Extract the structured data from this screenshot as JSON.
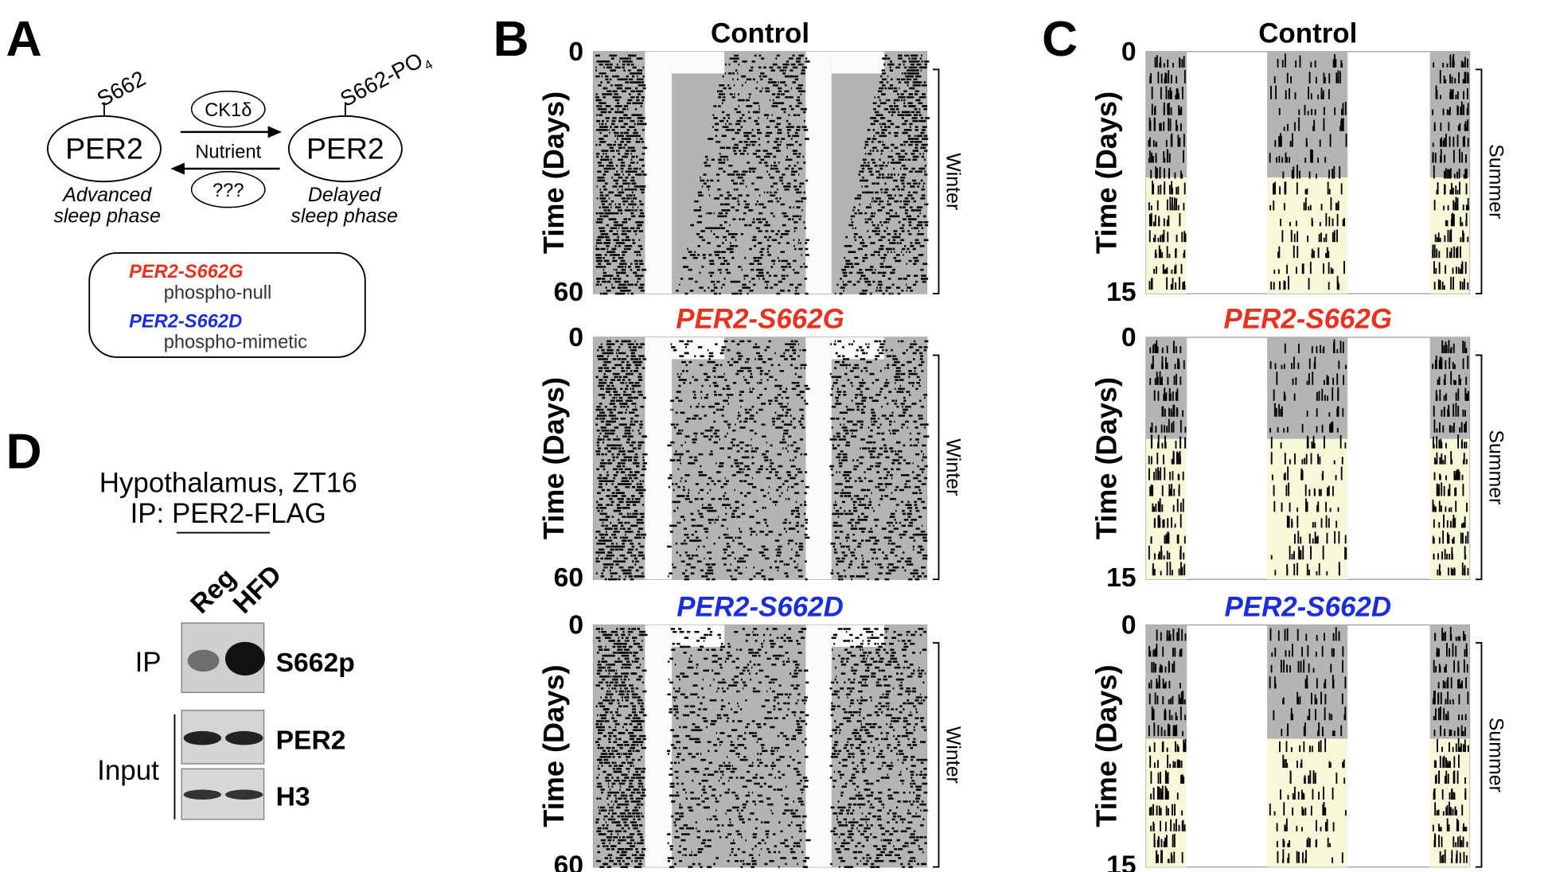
{
  "panel_a": {
    "label": "A",
    "site_left": "S662",
    "site_right": "S662-PO",
    "site_right_sub": "4",
    "protein_left": "PER2",
    "protein_right": "PER2",
    "kinase": "CK1δ",
    "nutrient": "Nutrient",
    "unknown": "???",
    "phenotype_left": [
      "Advanced",
      "sleep phase"
    ],
    "phenotype_right": [
      "Delayed",
      "sleep phase"
    ],
    "legend": [
      {
        "name": "PER2-S662G",
        "desc": "phospho-null",
        "color": "#e8321e"
      },
      {
        "name": "PER2-S662D",
        "desc": "phospho-mimetic",
        "color": "#1a2ee0"
      }
    ]
  },
  "panel_b": {
    "label": "B",
    "y_label": "Time (Days)",
    "season": "Winter",
    "y_start": "0",
    "y_end": "60",
    "actograms": [
      {
        "title": "Control",
        "color": "#000000"
      },
      {
        "title": "PER2-S662G",
        "color": "#e8321e"
      },
      {
        "title": "PER2-S662D",
        "color": "#1a2ee0"
      }
    ]
  },
  "panel_c": {
    "label": "C",
    "y_label": "Time (Days)",
    "season": "Summer",
    "y_start": "0",
    "y_end": "15",
    "actograms": [
      {
        "title": "Control",
        "color": "#000000"
      },
      {
        "title": "PER2-S662G",
        "color": "#e8321e"
      },
      {
        "title": "PER2-S662D",
        "color": "#1a2ee0"
      }
    ]
  },
  "panel_d": {
    "label": "D",
    "title_lines": [
      "Hypothalamus, ZT16",
      "IP: PER2-FLAG"
    ],
    "columns": [
      "Reg",
      "HFD"
    ],
    "group_ip": "IP",
    "group_input": "Input",
    "bands": [
      "S662p",
      "PER2",
      "H3"
    ]
  }
}
